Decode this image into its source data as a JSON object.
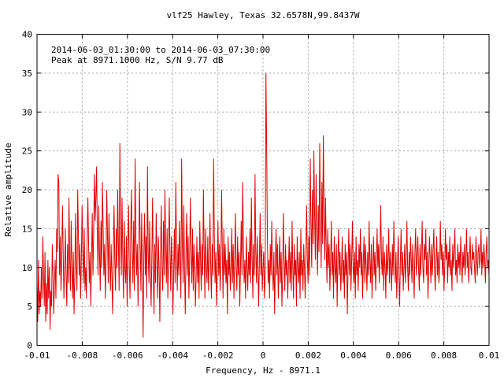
{
  "chart_data": {
    "type": "line",
    "title": "vlf25 Hawley, Texas 32.6578N,99.8437W",
    "annotations": [
      "2014-06-03_01:30:00 to 2014-06-03_07:30:00",
      "Peak at 8971.1000 Hz, S/N 9.77 dB"
    ],
    "xlabel": "Frequency, Hz - 8971.1",
    "ylabel": "Relative amplitude",
    "xlim": [
      -0.01,
      0.01
    ],
    "ylim": [
      0,
      40
    ],
    "grid": true,
    "x_ticks": [
      -0.01,
      -0.008,
      -0.006,
      -0.004,
      -0.002,
      0,
      0.002,
      0.004,
      0.006,
      0.008,
      0.01
    ],
    "x_tick_labels": [
      "-0.01",
      "-0.008",
      "-0.006",
      "-0.004",
      "-0.002",
      "0",
      "0.002",
      "0.004",
      "0.006",
      "0.008",
      "0.01"
    ],
    "y_ticks": [
      0,
      5,
      10,
      15,
      20,
      25,
      30,
      35,
      40
    ],
    "y_tick_labels": [
      "0",
      "5",
      "10",
      "15",
      "20",
      "25",
      "30",
      "35",
      "40"
    ],
    "line_color": "#e00000",
    "series": [
      {
        "name": "",
        "values": [
          8,
          3,
          11,
          4,
          7,
          5,
          10,
          6,
          14,
          9,
          5,
          12,
          3,
          8,
          4,
          11,
          6,
          10,
          2,
          7,
          5,
          13,
          9,
          4,
          8,
          11,
          6,
          15,
          12,
          22,
          21,
          9,
          14,
          7,
          11,
          18,
          12,
          6,
          10,
          15,
          9,
          5,
          13,
          8,
          19,
          11,
          7,
          16,
          10,
          6,
          12,
          4,
          9,
          17,
          10,
          7,
          20,
          14,
          9,
          13,
          6,
          11,
          18,
          12,
          8,
          15,
          7,
          10,
          6,
          14,
          19,
          13,
          8,
          12,
          5,
          11,
          17,
          9,
          15,
          22,
          16,
          19,
          23,
          14,
          9,
          18,
          12,
          7,
          16,
          10,
          21,
          15,
          9,
          13,
          6,
          11,
          20,
          14,
          8,
          17,
          11,
          7,
          13,
          9,
          4,
          12,
          18,
          11,
          7,
          15,
          10,
          20,
          13,
          7,
          26,
          14,
          9,
          19,
          11,
          6,
          16,
          10,
          8,
          14,
          5,
          12,
          18,
          10,
          6,
          15,
          20,
          12,
          8,
          16,
          7,
          24,
          14,
          9,
          13,
          5,
          11,
          21,
          13,
          7,
          17,
          10,
          1,
          12,
          17,
          9,
          14,
          6,
          23,
          12,
          8,
          16,
          10,
          5,
          11,
          19,
          9,
          4,
          13,
          8,
          17,
          11,
          6,
          14,
          10,
          3,
          12,
          18,
          10,
          7,
          16,
          9,
          20,
          13,
          8,
          15,
          6,
          11,
          19,
          12,
          7,
          14,
          10,
          4,
          9,
          15,
          8,
          21,
          12,
          7,
          13,
          9,
          16,
          11,
          6,
          24,
          13,
          8,
          18,
          10,
          4,
          12,
          17,
          9,
          14,
          6,
          11,
          19,
          12,
          8,
          15,
          7,
          13,
          10,
          5,
          9,
          14,
          8,
          12,
          6,
          16,
          11,
          7,
          13,
          9,
          20,
          12,
          6,
          15,
          10,
          8,
          14,
          7,
          11,
          17,
          10,
          6,
          13,
          9,
          24,
          14,
          8,
          12,
          5,
          10,
          16,
          9,
          13,
          7,
          11,
          20,
          12,
          6,
          15,
          9,
          13,
          8,
          11,
          4,
          14,
          9,
          12,
          7,
          10,
          15,
          8,
          13,
          6,
          11,
          17,
          10,
          7,
          14,
          9,
          12,
          5,
          10,
          16,
          9,
          21,
          13,
          8,
          11,
          6,
          14,
          10,
          7,
          12,
          9,
          15,
          8,
          19,
          11,
          6,
          13,
          9,
          22,
          12,
          8,
          14,
          10,
          5,
          11,
          17,
          9,
          13,
          7,
          10,
          12,
          6,
          9,
          35,
          26,
          14,
          8,
          11,
          6,
          13,
          9,
          16,
          10,
          7,
          12,
          4,
          11,
          15,
          9,
          13,
          6,
          10,
          14,
          8,
          12,
          5,
          9,
          17,
          11,
          7,
          13,
          9,
          11,
          6,
          10,
          14,
          8,
          12,
          7,
          16,
          10,
          6,
          13,
          9,
          11,
          5,
          14,
          10,
          8,
          12,
          6,
          15,
          9,
          11,
          7,
          13,
          10,
          6,
          12,
          18,
          11,
          8,
          14,
          9,
          24,
          16,
          10,
          20,
          13,
          25,
          17,
          11,
          22,
          14,
          9,
          18,
          12,
          26,
          16,
          10,
          21,
          13,
          27,
          17,
          11,
          19,
          12,
          8,
          15,
          10,
          13,
          7,
          11,
          16,
          9,
          12,
          6,
          14,
          10,
          8,
          13,
          5,
          11,
          15,
          9,
          12,
          7,
          10,
          14,
          8,
          11,
          6,
          13,
          9,
          12,
          4,
          10,
          15,
          9,
          13,
          7,
          11,
          16,
          10,
          8,
          12,
          6,
          14,
          9,
          11,
          7,
          13,
          10,
          15,
          9,
          12,
          6,
          11,
          14,
          8,
          13,
          10,
          7,
          12,
          9,
          16,
          11,
          8,
          13,
          6,
          10,
          14,
          9,
          12,
          7,
          11,
          15,
          10,
          13,
          8,
          12,
          18,
          11,
          9,
          14,
          7,
          12,
          10,
          6,
          13,
          9,
          11,
          15,
          8,
          12,
          10,
          7,
          13,
          9,
          16,
          11,
          8,
          12,
          6,
          10,
          14,
          9,
          5,
          11,
          15,
          9,
          12,
          7,
          10,
          13,
          8,
          11,
          16,
          10,
          7,
          12,
          9,
          14,
          11,
          8,
          13,
          10,
          6,
          12,
          15,
          9,
          11,
          14,
          10,
          7,
          13,
          9,
          12,
          16,
          10,
          8,
          13,
          11,
          15,
          9,
          12,
          6,
          10,
          14,
          11,
          8,
          13,
          9,
          12,
          15,
          10,
          7,
          11,
          14,
          9,
          12,
          8,
          10,
          16,
          11,
          13,
          9,
          12,
          7,
          10,
          15,
          11,
          13,
          8,
          12,
          10,
          14,
          9,
          11,
          7,
          13,
          10,
          12,
          15,
          9,
          11,
          8,
          13,
          10,
          12,
          9,
          14,
          11,
          8,
          12,
          10,
          13,
          9,
          11,
          15,
          10,
          12,
          8,
          11,
          14,
          10,
          9,
          13,
          11,
          12,
          10,
          8,
          14,
          11,
          9,
          12,
          13,
          10,
          11,
          15,
          9,
          12,
          10,
          13,
          11,
          8,
          12,
          14,
          10,
          11,
          9
        ]
      }
    ]
  }
}
